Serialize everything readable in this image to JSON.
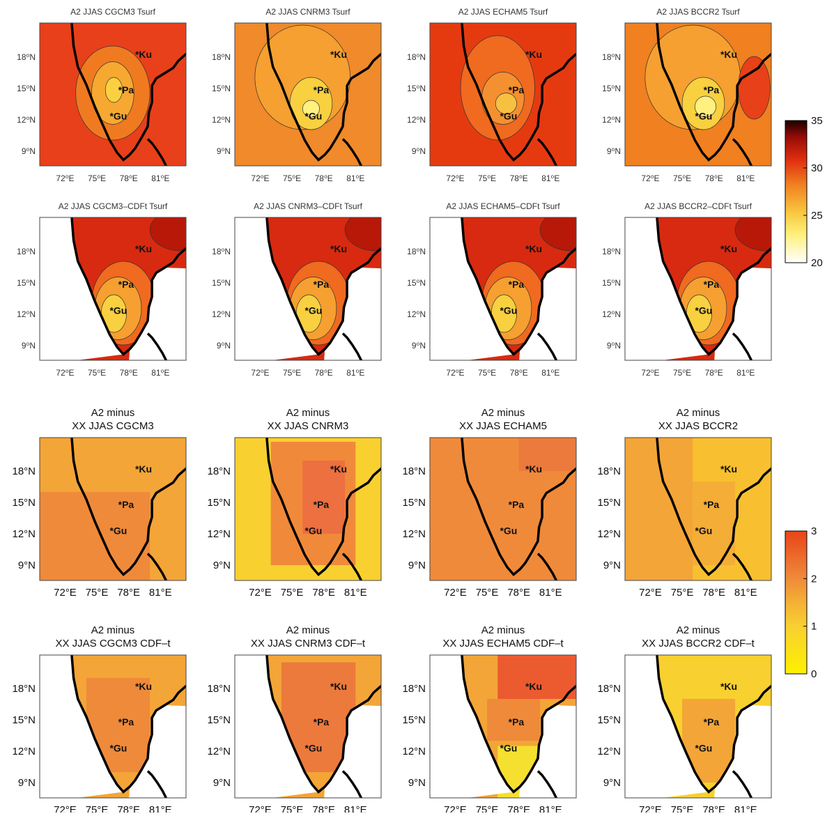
{
  "rows": [
    {
      "panels": [
        {
          "title": [
            "A2 JJAS CGCM3 Tsurf"
          ]
        },
        {
          "title": [
            "A2 JJAS CNRM3 Tsurf"
          ]
        },
        {
          "title": [
            "A2 JJAS ECHAM5 Tsurf"
          ]
        },
        {
          "title": [
            "A2 JJAS BCCR2 Tsurf"
          ]
        }
      ]
    },
    {
      "panels": [
        {
          "title": [
            "A2 JJAS CGCM3–CDFt Tsurf"
          ]
        },
        {
          "title": [
            "A2 JJAS CNRM3–CDFt Tsurf"
          ]
        },
        {
          "title": [
            "A2 JJAS ECHAM5–CDFt Tsurf"
          ]
        },
        {
          "title": [
            "A2 JJAS BCCR2–CDFt Tsurf"
          ]
        }
      ]
    },
    {
      "panels": [
        {
          "title": [
            "A2 minus",
            "XX JJAS CGCM3"
          ]
        },
        {
          "title": [
            "A2 minus",
            "XX JJAS CNRM3"
          ]
        },
        {
          "title": [
            "A2 minus",
            "XX JJAS ECHAM5"
          ]
        },
        {
          "title": [
            "A2 minus",
            "XX JJAS BCCR2"
          ]
        }
      ]
    },
    {
      "panels": [
        {
          "title": [
            "A2 minus",
            "XX JJAS CGCM3 CDF–t"
          ]
        },
        {
          "title": [
            "A2 minus",
            "XX JJAS CNRM3 CDF–t"
          ]
        },
        {
          "title": [
            "A2 minus",
            "XX JJAS ECHAM5 CDF–t"
          ]
        },
        {
          "title": [
            "A2 minus",
            "XX JJAS BCCR2 CDF–t"
          ]
        }
      ]
    }
  ],
  "axes_upper": {
    "lat": [
      "18⁰N",
      "15⁰N",
      "12⁰N",
      "9⁰N"
    ],
    "lon": [
      "72⁰E",
      "75⁰E",
      "78⁰E",
      "81⁰E"
    ]
  },
  "axes_lower": {
    "lat": [
      "18°N",
      "15°N",
      "12°N",
      "9°N"
    ],
    "lon": [
      "72°E",
      "75°E",
      "78°E",
      "81°E"
    ]
  },
  "stations": [
    "*Ku",
    "*Pa",
    "*Gu"
  ],
  "colorbar_upper": {
    "range": [
      20,
      35
    ],
    "ticks": [
      20,
      25,
      30,
      35
    ]
  },
  "colorbar_lower": {
    "range": [
      0,
      3
    ],
    "ticks": [
      0,
      1,
      2,
      3
    ]
  }
}
